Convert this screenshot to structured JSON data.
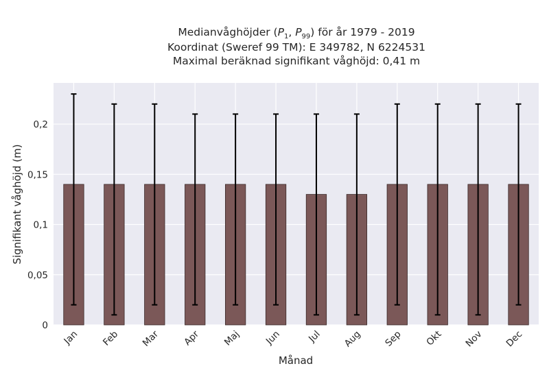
{
  "title": {
    "line1_prefix": "Medianvåghöjder (",
    "p1_main": "P",
    "p1_sub": "1",
    "separator": ", ",
    "p99_main": "P",
    "p99_sub": "99",
    "line1_suffix": ") för år 1979 - 2019",
    "line2": "Koordinat (Sweref 99 TM): E 349782, N 6224531",
    "line3": "Maximal beräknad signifikant våghöjd: 0,41 m"
  },
  "chart_data": {
    "type": "bar",
    "xlabel": "Månad",
    "ylabel": "Signifikant våghöjd (m)",
    "categories": [
      "Jan",
      "Feb",
      "Mar",
      "Apr",
      "Maj",
      "Jun",
      "Jul",
      "Aug",
      "Sep",
      "Okt",
      "Nov",
      "Dec"
    ],
    "values": [
      0.14,
      0.14,
      0.14,
      0.14,
      0.14,
      0.14,
      0.13,
      0.13,
      0.14,
      0.14,
      0.14,
      0.14
    ],
    "error_low": [
      0.02,
      0.01,
      0.02,
      0.02,
      0.02,
      0.02,
      0.01,
      0.01,
      0.02,
      0.01,
      0.01,
      0.02
    ],
    "error_high": [
      0.23,
      0.22,
      0.22,
      0.21,
      0.21,
      0.21,
      0.21,
      0.21,
      0.22,
      0.22,
      0.22,
      0.22
    ],
    "yticks": [
      0,
      0.05,
      0.1,
      0.15,
      0.2
    ],
    "ytick_labels": [
      "0",
      "0,05",
      "0,1",
      "0,15",
      "0,2"
    ],
    "ylim": [
      0,
      0.241
    ],
    "grid": true,
    "colors": {
      "bar": "#7b5858",
      "bar_edge": "#3a2a2a",
      "errorbar": "#000000",
      "plot_background": "#eaeaf2",
      "grid": "#ffffff"
    }
  }
}
